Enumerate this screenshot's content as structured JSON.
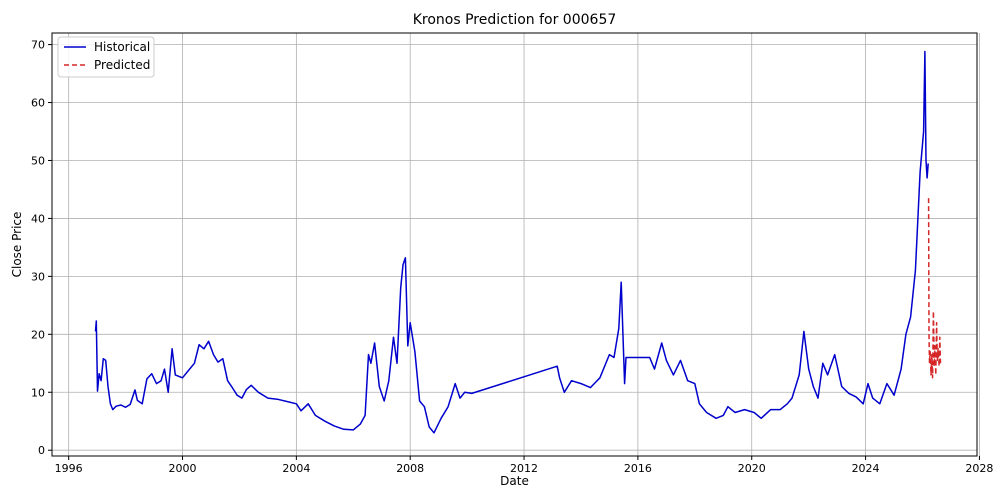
{
  "chart_data": {
    "type": "line",
    "title": "Kronos Prediction for 000657",
    "xlabel": "Date",
    "ylabel": "Close Price",
    "xlim": [
      "1995-06-01",
      "2027-12-01"
    ],
    "ylim": [
      -1,
      72
    ],
    "x_ticks": [
      "1996",
      "2000",
      "2004",
      "2008",
      "2012",
      "2016",
      "2020",
      "2024",
      "2028"
    ],
    "y_ticks": [
      0,
      10,
      20,
      30,
      40,
      50,
      60,
      70
    ],
    "grid": true,
    "legend": {
      "placement": "top-left"
    },
    "series": [
      {
        "name": "Historical",
        "color": "#0000cd",
        "style": "solid",
        "points": [
          [
            "1996-12-10",
            20.5
          ],
          [
            "1996-12-20",
            22.3
          ],
          [
            "1997-01-05",
            10.2
          ],
          [
            "1997-01-25",
            13.2
          ],
          [
            "1997-02-20",
            12.0
          ],
          [
            "1997-03-20",
            15.8
          ],
          [
            "1997-04-20",
            15.5
          ],
          [
            "1997-05-20",
            11.0
          ],
          [
            "1997-06-20",
            8.0
          ],
          [
            "1997-07-20",
            7.0
          ],
          [
            "1997-09-01",
            7.6
          ],
          [
            "1997-11-01",
            7.8
          ],
          [
            "1998-01-01",
            7.4
          ],
          [
            "1998-03-01",
            7.9
          ],
          [
            "1998-05-01",
            10.4
          ],
          [
            "1998-06-01",
            8.6
          ],
          [
            "1998-08-01",
            8.0
          ],
          [
            "1998-10-01",
            12.3
          ],
          [
            "1998-12-01",
            13.2
          ],
          [
            "1999-02-01",
            11.5
          ],
          [
            "1999-04-01",
            12.0
          ],
          [
            "1999-05-15",
            14.0
          ],
          [
            "1999-07-01",
            10.0
          ],
          [
            "1999-08-20",
            17.5
          ],
          [
            "1999-10-01",
            13.0
          ],
          [
            "2000-01-01",
            12.5
          ],
          [
            "2000-03-01",
            13.5
          ],
          [
            "2000-06-01",
            15.0
          ],
          [
            "2000-08-01",
            18.2
          ],
          [
            "2000-10-01",
            17.5
          ],
          [
            "2000-12-01",
            18.8
          ],
          [
            "2001-02-01",
            16.5
          ],
          [
            "2001-04-01",
            15.2
          ],
          [
            "2001-06-01",
            15.8
          ],
          [
            "2001-08-01",
            12.0
          ],
          [
            "2001-10-01",
            10.8
          ],
          [
            "2001-12-01",
            9.5
          ],
          [
            "2002-02-01",
            9.0
          ],
          [
            "2002-04-01",
            10.5
          ],
          [
            "2002-06-01",
            11.2
          ],
          [
            "2002-09-01",
            10.0
          ],
          [
            "2003-01-01",
            9.0
          ],
          [
            "2003-05-01",
            8.8
          ],
          [
            "2003-09-01",
            8.4
          ],
          [
            "2004-01-01",
            8.0
          ],
          [
            "2004-03-01",
            6.8
          ],
          [
            "2004-06-01",
            8.0
          ],
          [
            "2004-09-01",
            6.0
          ],
          [
            "2005-01-01",
            5.0
          ],
          [
            "2005-05-01",
            4.2
          ],
          [
            "2005-09-01",
            3.6
          ],
          [
            "2006-01-01",
            3.5
          ],
          [
            "2006-04-01",
            4.5
          ],
          [
            "2006-06-01",
            6.0
          ],
          [
            "2006-07-15",
            16.5
          ],
          [
            "2006-08-15",
            15.0
          ],
          [
            "2006-10-01",
            18.5
          ],
          [
            "2006-12-01",
            11.0
          ],
          [
            "2007-02-01",
            8.5
          ],
          [
            "2007-04-01",
            12.0
          ],
          [
            "2007-06-01",
            19.5
          ],
          [
            "2007-07-15",
            15.0
          ],
          [
            "2007-09-01",
            28.0
          ],
          [
            "2007-10-01",
            32.0
          ],
          [
            "2007-11-01",
            33.2
          ],
          [
            "2007-12-01",
            18.0
          ],
          [
            "2008-01-01",
            22.0
          ],
          [
            "2008-03-01",
            17.0
          ],
          [
            "2008-05-01",
            8.5
          ],
          [
            "2008-07-01",
            7.5
          ],
          [
            "2008-09-01",
            4.0
          ],
          [
            "2008-11-01",
            3.0
          ],
          [
            "2009-02-01",
            5.5
          ],
          [
            "2009-05-01",
            7.5
          ],
          [
            "2009-08-01",
            11.5
          ],
          [
            "2009-10-01",
            9.0
          ],
          [
            "2009-12-01",
            10.0
          ],
          [
            "2010-03-01",
            9.8
          ],
          [
            "2013-03-01",
            14.5
          ],
          [
            "2013-04-01",
            12.5
          ],
          [
            "2013-06-01",
            10.0
          ],
          [
            "2013-09-01",
            12.0
          ],
          [
            "2014-01-01",
            11.5
          ],
          [
            "2014-05-01",
            10.8
          ],
          [
            "2014-09-01",
            12.5
          ],
          [
            "2015-01-01",
            16.5
          ],
          [
            "2015-03-01",
            16.0
          ],
          [
            "2015-05-01",
            21.0
          ],
          [
            "2015-06-01",
            29.0
          ],
          [
            "2015-07-15",
            11.5
          ],
          [
            "2015-08-01",
            16.0
          ],
          [
            "2016-06-01",
            16.0
          ],
          [
            "2016-08-01",
            14.0
          ],
          [
            "2016-11-01",
            18.5
          ],
          [
            "2017-01-01",
            15.5
          ],
          [
            "2017-04-01",
            13.0
          ],
          [
            "2017-07-01",
            15.5
          ],
          [
            "2017-10-01",
            12.0
          ],
          [
            "2018-01-01",
            11.5
          ],
          [
            "2018-03-01",
            8.0
          ],
          [
            "2018-06-01",
            6.5
          ],
          [
            "2018-10-01",
            5.5
          ],
          [
            "2019-01-01",
            6.0
          ],
          [
            "2019-03-01",
            7.5
          ],
          [
            "2019-06-01",
            6.5
          ],
          [
            "2019-10-01",
            7.0
          ],
          [
            "2020-02-01",
            6.5
          ],
          [
            "2020-05-01",
            5.5
          ],
          [
            "2020-09-01",
            7.0
          ],
          [
            "2021-01-01",
            7.0
          ],
          [
            "2021-04-01",
            8.0
          ],
          [
            "2021-06-01",
            9.0
          ],
          [
            "2021-09-01",
            13.0
          ],
          [
            "2021-11-01",
            20.5
          ],
          [
            "2022-01-01",
            14.0
          ],
          [
            "2022-03-01",
            11.0
          ],
          [
            "2022-05-01",
            9.0
          ],
          [
            "2022-07-01",
            15.0
          ],
          [
            "2022-09-01",
            13.0
          ],
          [
            "2022-12-01",
            16.5
          ],
          [
            "2023-03-01",
            11.0
          ],
          [
            "2023-06-01",
            9.8
          ],
          [
            "2023-09-01",
            9.2
          ],
          [
            "2023-12-01",
            8.0
          ],
          [
            "2024-02-01",
            11.5
          ],
          [
            "2024-04-01",
            9.0
          ],
          [
            "2024-07-01",
            8.0
          ],
          [
            "2024-10-01",
            11.5
          ],
          [
            "2025-01-01",
            9.5
          ],
          [
            "2025-04-01",
            14.0
          ],
          [
            "2025-06-01",
            20.0
          ],
          [
            "2025-08-01",
            23.0
          ],
          [
            "2025-10-01",
            31.0
          ],
          [
            "2025-12-01",
            48.0
          ],
          [
            "2026-01-15",
            55.0
          ],
          [
            "2026-02-01",
            68.8
          ],
          [
            "2026-02-15",
            50.0
          ],
          [
            "2026-03-01",
            47.0
          ],
          [
            "2026-03-15",
            49.5
          ]
        ]
      },
      {
        "name": "Predicted",
        "color": "#d62728",
        "style": "dashed",
        "points": [
          [
            "2026-03-20",
            43.5
          ],
          [
            "2026-03-25",
            20.0
          ],
          [
            "2026-04-01",
            15.0
          ],
          [
            "2026-04-10",
            17.0
          ],
          [
            "2026-04-20",
            13.0
          ],
          [
            "2026-05-01",
            16.5
          ],
          [
            "2026-05-10",
            12.5
          ],
          [
            "2026-05-20",
            24.0
          ],
          [
            "2026-06-01",
            14.5
          ],
          [
            "2026-06-10",
            18.0
          ],
          [
            "2026-06-20",
            13.0
          ],
          [
            "2026-07-01",
            22.0
          ],
          [
            "2026-07-10",
            15.5
          ],
          [
            "2026-07-20",
            17.5
          ],
          [
            "2026-08-01",
            14.5
          ],
          [
            "2026-08-10",
            19.5
          ],
          [
            "2026-08-20",
            15.0
          ]
        ]
      }
    ]
  }
}
